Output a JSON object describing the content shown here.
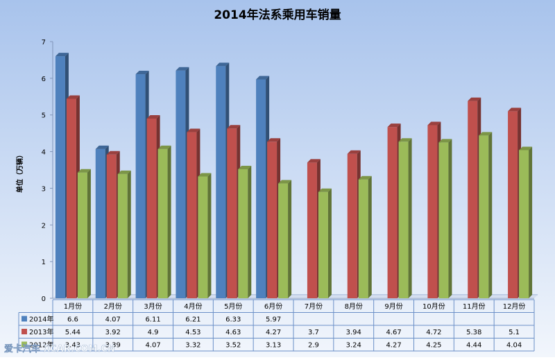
{
  "chart_data": {
    "type": "bar",
    "title": "2014年法系乘用车销量",
    "ylabel": "单位（万辆）",
    "xlabel": "",
    "ylim": [
      0,
      7
    ],
    "yticks": [
      0,
      1,
      2,
      3,
      4,
      5,
      6,
      7
    ],
    "grid": false,
    "legend_position": "bottom data table",
    "categories": [
      "1月份",
      "2月份",
      "3月份",
      "4月份",
      "5月份",
      "6月份",
      "7月份",
      "8月份",
      "9月份",
      "10月份",
      "11月份",
      "12月份"
    ],
    "series": [
      {
        "name": "2014年",
        "color": "#4F81BD",
        "values": [
          6.6,
          4.07,
          6.11,
          6.21,
          6.33,
          5.97,
          null,
          null,
          null,
          null,
          null,
          null
        ]
      },
      {
        "name": "2013年",
        "color": "#C0504D",
        "values": [
          5.44,
          3.92,
          4.9,
          4.53,
          4.63,
          4.27,
          3.7,
          3.94,
          4.67,
          4.72,
          5.38,
          5.1
        ]
      },
      {
        "name": "2012年",
        "color": "#9BBB59",
        "values": [
          3.43,
          3.39,
          4.07,
          3.32,
          3.52,
          3.13,
          2.9,
          3.24,
          4.27,
          4.25,
          4.44,
          4.04
        ]
      }
    ],
    "table_labels": [
      [
        "6.6",
        "4.07",
        "6.11",
        "6.21",
        "6.33",
        "5.97",
        "",
        "",
        "",
        "",
        "",
        ""
      ],
      [
        "5.44",
        "3.92",
        "4.9",
        "4.53",
        "4.63",
        "4.27",
        "3.7",
        "3.94",
        "4.67",
        "4.72",
        "5.38",
        "5.1"
      ],
      [
        "3.43",
        "3.39",
        "4.07",
        "3.32",
        "3.52",
        "3.13",
        "2.9",
        "3.24",
        "4.27",
        "4.25",
        "4.44",
        "4.04"
      ]
    ]
  },
  "watermark": "爱卡汽车 XCAR.COM.CN",
  "colors": {
    "bg_top": "#A8C3EC",
    "bg_bottom": "#F2F6FC",
    "table_border": "#6A8FC7"
  }
}
